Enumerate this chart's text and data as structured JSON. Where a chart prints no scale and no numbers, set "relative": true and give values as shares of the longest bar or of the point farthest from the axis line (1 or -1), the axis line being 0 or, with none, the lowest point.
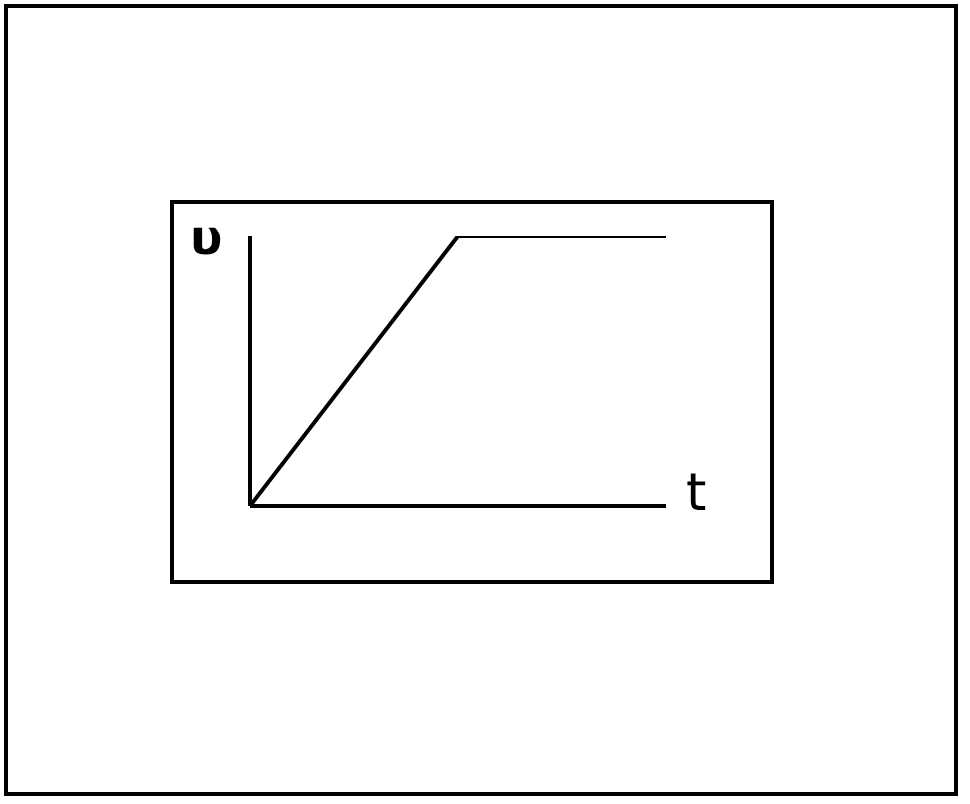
{
  "chart_data": {
    "type": "line",
    "xlabel": "t",
    "ylabel": "υ",
    "categories": [
      null,
      null,
      null
    ],
    "relative": true,
    "series": [
      {
        "color": "#000000",
        "values": [
          0,
          1,
          1
        ]
      }
    ],
    "marker": "none",
    "grid": false,
    "legend": false
  }
}
